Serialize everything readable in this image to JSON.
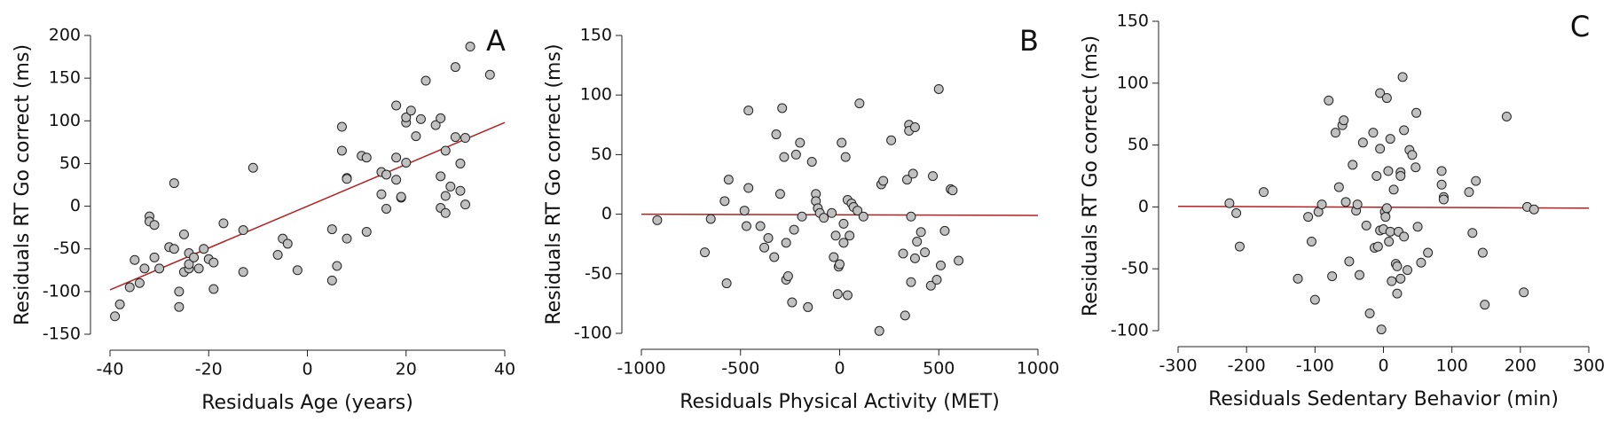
{
  "chart_data": [
    {
      "type": "scatter",
      "label": "A",
      "x_label": "Residuals Age (years)",
      "y_label": "Residuals RT Go correct (ms)",
      "xlim": [
        -40,
        40
      ],
      "ylim": [
        -150,
        200
      ],
      "xticks": [
        -40,
        -20,
        0,
        20,
        40
      ],
      "yticks": [
        -150,
        -100,
        -50,
        0,
        50,
        100,
        150,
        200
      ],
      "series": [
        {
          "color": "#c0c0c0",
          "x": [
            -39,
            -38,
            -36,
            -35,
            -34,
            -33,
            -32,
            -32,
            -31,
            -31,
            -30,
            -28,
            -27,
            -27,
            -26,
            -26,
            -25,
            -25,
            -24,
            -24,
            -24,
            -23,
            -22,
            -21,
            -20,
            -19,
            -19,
            -17,
            -13,
            -13,
            -11,
            -6,
            -5,
            -4,
            -2,
            5,
            5,
            6,
            7,
            7,
            8,
            8,
            8,
            11,
            12,
            12,
            15,
            15,
            16,
            16,
            18,
            18,
            18,
            19,
            19,
            20,
            20,
            20,
            21,
            22,
            23,
            24,
            26,
            27,
            27,
            27,
            28,
            28,
            28,
            29,
            30,
            30,
            31,
            31,
            32,
            32,
            33,
            37
          ],
          "y": [
            -129,
            -115,
            -95,
            -63,
            -90,
            -73,
            -12,
            -18,
            -22,
            -60,
            -73,
            -48,
            -50,
            27,
            -100,
            -118,
            -33,
            -77,
            -55,
            -73,
            -68,
            -60,
            -73,
            -50,
            -62,
            -97,
            -66,
            -20,
            -77,
            -28,
            45,
            -57,
            -38,
            -44,
            -75,
            -87,
            -27,
            -70,
            93,
            65,
            -38,
            33,
            32,
            59,
            57,
            -30,
            40,
            14,
            -3,
            37,
            118,
            57,
            31,
            10,
            11,
            98,
            104,
            51,
            112,
            82,
            102,
            147,
            95,
            103,
            35,
            -2,
            65,
            -8,
            12,
            23,
            163,
            81,
            50,
            18,
            2,
            80,
            187,
            154
          ]
        }
      ],
      "fit": {
        "color": "#b22222",
        "x": [
          -40,
          40
        ],
        "y": [
          -98,
          98
        ]
      }
    },
    {
      "type": "scatter",
      "label": "B",
      "x_label": "Residuals Physical Activity (MET)",
      "y_label": "Residuals RT Go correct (ms)",
      "xlim": [
        -1000,
        1000
      ],
      "ylim": [
        -100,
        150
      ],
      "xticks": [
        -1000,
        -500,
        0,
        500,
        1000
      ],
      "yticks": [
        -100,
        -50,
        0,
        50,
        100,
        150
      ],
      "series": [
        {
          "color": "#c0c0c0",
          "x": [
            -920,
            -680,
            -650,
            -580,
            -570,
            -560,
            -480,
            -470,
            -460,
            -460,
            -400,
            -380,
            -360,
            -330,
            -320,
            -300,
            -290,
            -280,
            -270,
            -270,
            -260,
            -240,
            -230,
            -220,
            -200,
            -190,
            -160,
            -140,
            -120,
            -120,
            -110,
            -100,
            -80,
            -40,
            -30,
            -20,
            -10,
            -5,
            0,
            10,
            20,
            20,
            30,
            40,
            40,
            50,
            60,
            70,
            90,
            100,
            120,
            200,
            210,
            220,
            260,
            320,
            330,
            340,
            350,
            350,
            360,
            360,
            370,
            380,
            380,
            390,
            410,
            430,
            460,
            470,
            490,
            500,
            510,
            530,
            560,
            570,
            600
          ],
          "y": [
            -5,
            -32,
            -4,
            11,
            -58,
            29,
            3,
            -10,
            87,
            22,
            -10,
            -28,
            -20,
            -36,
            67,
            17,
            89,
            48,
            -55,
            -24,
            -52,
            -74,
            -13,
            50,
            60,
            -2,
            -78,
            44,
            17,
            11,
            5,
            1,
            -3,
            1,
            -36,
            -18,
            -67,
            -44,
            -42,
            60,
            -8,
            -24,
            48,
            -68,
            12,
            -18,
            9,
            6,
            3,
            93,
            -2,
            -98,
            25,
            28,
            62,
            -33,
            -85,
            29,
            75,
            70,
            -57,
            -2,
            34,
            73,
            -37,
            -23,
            -15,
            -32,
            -60,
            32,
            -55,
            105,
            -43,
            -14,
            21,
            20,
            -39
          ]
        }
      ],
      "fit": {
        "color": "#b22222",
        "x": [
          -1000,
          1000
        ],
        "y": [
          0,
          -1
        ]
      }
    },
    {
      "type": "scatter",
      "label": "C",
      "x_label": "Residuals Sedentary Behavior (min)",
      "y_label": "Residuals RT Go correct (ms)",
      "xlim": [
        -300,
        300
      ],
      "ylim": [
        -100,
        150
      ],
      "xticks": [
        -300,
        -200,
        -100,
        0,
        100,
        200,
        300
      ],
      "yticks": [
        -100,
        -50,
        0,
        50,
        100,
        150
      ],
      "series": [
        {
          "color": "#c0c0c0",
          "x": [
            -225,
            -215,
            -210,
            -175,
            -125,
            -110,
            -105,
            -100,
            -95,
            -90,
            -80,
            -75,
            -70,
            -65,
            -60,
            -58,
            -55,
            -50,
            -45,
            -40,
            -38,
            -35,
            -30,
            -25,
            -20,
            -15,
            -13,
            -10,
            -8,
            -5,
            -5,
            -5,
            -3,
            0,
            2,
            3,
            5,
            5,
            7,
            8,
            10,
            10,
            12,
            15,
            18,
            20,
            20,
            22,
            25,
            25,
            25,
            28,
            30,
            30,
            35,
            38,
            42,
            47,
            48,
            50,
            55,
            65,
            85,
            85,
            88,
            88,
            125,
            130,
            135,
            145,
            148,
            180,
            205,
            210,
            220
          ],
          "y": [
            3,
            -5,
            -32,
            12,
            -58,
            -8,
            -28,
            -75,
            -4,
            2,
            86,
            -56,
            60,
            16,
            66,
            70,
            4,
            -44,
            34,
            -3,
            2,
            -55,
            52,
            -15,
            -86,
            60,
            -33,
            25,
            -32,
            92,
            -19,
            47,
            -99,
            -18,
            -4,
            -8,
            -1,
            88,
            29,
            -28,
            -20,
            55,
            -60,
            14,
            -46,
            -48,
            -70,
            -20,
            28,
            25,
            -58,
            105,
            -24,
            62,
            -51,
            46,
            42,
            32,
            76,
            -16,
            -45,
            -37,
            29,
            18,
            8,
            6,
            12,
            -21,
            21,
            -37,
            -79,
            73,
            -69,
            0,
            -2
          ]
        }
      ],
      "fit": {
        "color": "#b22222",
        "x": [
          -300,
          300
        ],
        "y": [
          0.5,
          -1
        ]
      }
    }
  ]
}
